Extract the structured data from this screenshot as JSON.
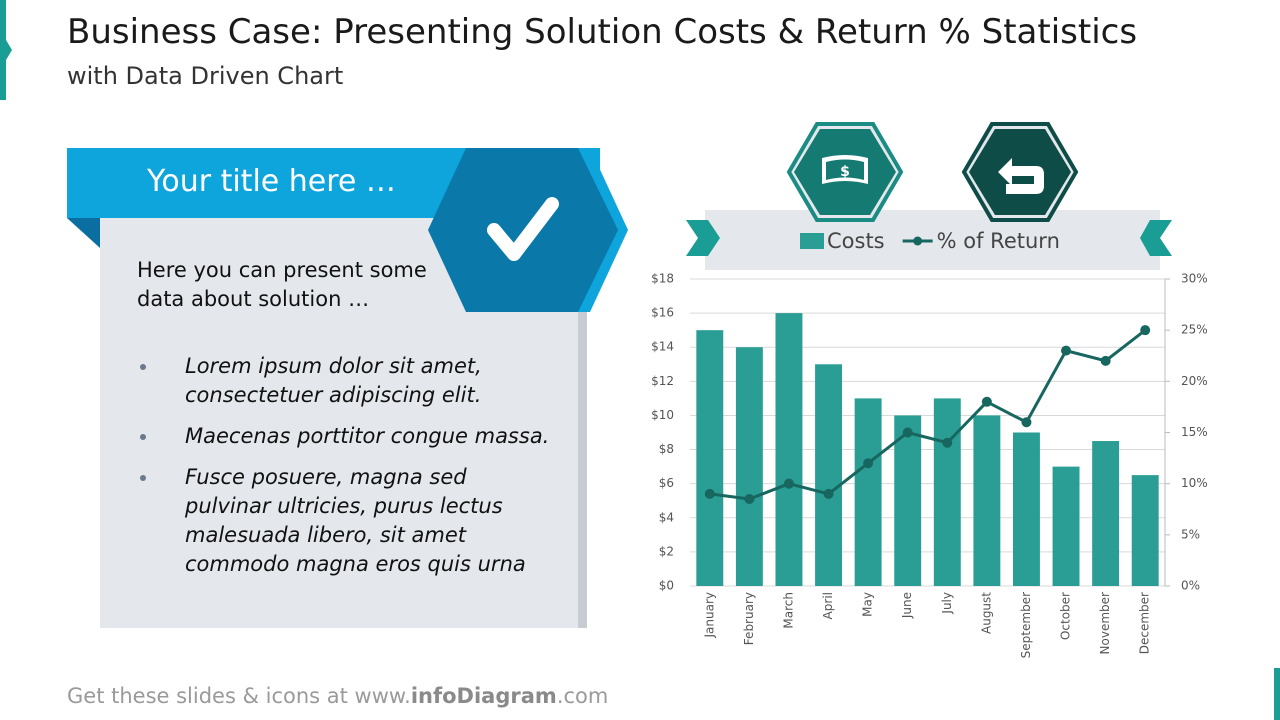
{
  "header": {
    "title": "Business Case: Presenting Solution Costs & Return % Statistics",
    "subtitle": "with Data Driven Chart"
  },
  "card": {
    "title": "Your title here …",
    "intro": "Here you can present some data about solution …",
    "bullets": [
      "Lorem ipsum dolor sit amet, consectetuer adipiscing elit.",
      "Maecenas porttitor congue massa.",
      "Fusce posuere, magna sed pulvinar ultricies, purus lectus malesuada libero, sit amet commodo magna eros quis urna"
    ]
  },
  "icon_text": "$",
  "footer": {
    "prefix": "Get these slides & icons at www.",
    "brand": "infoDiagram",
    "suffix": ".com"
  },
  "chart_data": {
    "type": "bar",
    "categories": [
      "January",
      "February",
      "March",
      "April",
      "May",
      "June",
      "July",
      "August",
      "September",
      "October",
      "November",
      "December"
    ],
    "series": [
      {
        "name": "Costs",
        "color": "#2a9d94",
        "values": [
          15,
          14,
          16,
          13,
          11,
          10,
          11,
          10,
          9,
          7,
          8.5,
          6.5
        ]
      },
      {
        "name": "% of Return",
        "type": "line",
        "axis": "y2",
        "color": "#17665f",
        "values": [
          9,
          8.5,
          10,
          9,
          12,
          15,
          14,
          18,
          16,
          23,
          22,
          25
        ]
      }
    ],
    "ylim": [
      0,
      18
    ],
    "yticks": [
      {
        "value": 0,
        "label": "$0"
      },
      {
        "value": 2,
        "label": "$2"
      },
      {
        "value": 4,
        "label": "$4"
      },
      {
        "value": 6,
        "label": "$6"
      },
      {
        "value": 8,
        "label": "$8"
      },
      {
        "value": 10,
        "label": "$10"
      },
      {
        "value": 12,
        "label": "$12"
      },
      {
        "value": 14,
        "label": "$14"
      },
      {
        "value": 16,
        "label": "$16"
      },
      {
        "value": 18,
        "label": "$18"
      }
    ],
    "y2lim": [
      0,
      30
    ],
    "y2ticks": [
      {
        "value": 0,
        "label": "0%"
      },
      {
        "value": 5,
        "label": "5%"
      },
      {
        "value": 10,
        "label": "10%"
      },
      {
        "value": 15,
        "label": "15%"
      },
      {
        "value": 20,
        "label": "20%"
      },
      {
        "value": 25,
        "label": "25%"
      },
      {
        "value": 30,
        "label": "30%"
      }
    ],
    "grid": true
  }
}
